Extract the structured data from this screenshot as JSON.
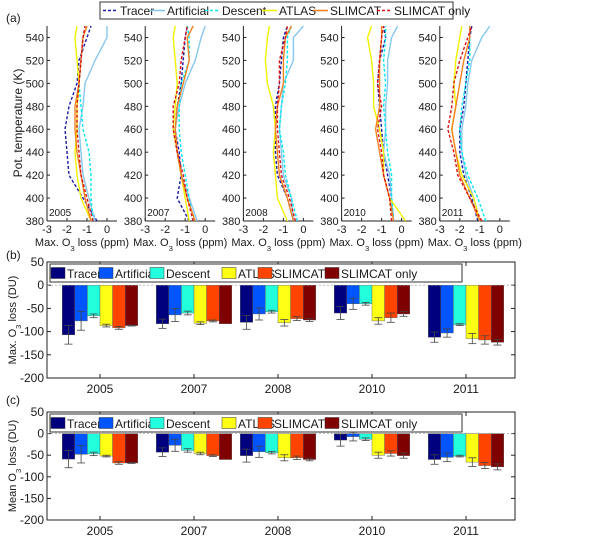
{
  "panel_labels": {
    "a": "(a)",
    "b": "(b)",
    "c": "(c)"
  },
  "series_names": [
    "Tracer",
    "Artificial",
    "Descent",
    "ATLAS",
    "SLIMCAT",
    "SLIMCAT only"
  ],
  "line_colors": [
    "#1a1aa8",
    "#87c8f0",
    "#00e8f0",
    "#f2f200",
    "#f58220",
    "#d41414"
  ],
  "line_dashed": [
    true,
    false,
    true,
    false,
    false,
    true
  ],
  "bar_colors": [
    "#00007f",
    "#0055ff",
    "#22ffdd",
    "#ffff14",
    "#ff4400",
    "#7f0000"
  ],
  "chart_data": [
    {
      "type": "line",
      "panel": "a",
      "ylabel": "Pot. temperature (K)",
      "xlabel": "Max. O3 loss (ppm)",
      "xlim": [
        -3,
        0.5
      ],
      "ylim": [
        380,
        550
      ],
      "xticks": [
        "-3",
        "-2",
        "-1",
        "0"
      ],
      "yticks": [
        "380",
        "400",
        "420",
        "440",
        "460",
        "480",
        "500",
        "520",
        "540"
      ],
      "theta": [
        380,
        400,
        420,
        440,
        460,
        480,
        500,
        520,
        540,
        550
      ],
      "subplots": [
        {
          "year": "2005",
          "series": [
            [
              -0.5,
              -1.2,
              -1.9,
              -2.0,
              -2.1,
              -1.9,
              -1.5,
              -1.4,
              -1.0,
              -0.8
            ],
            [
              -0.6,
              -0.9,
              -1.2,
              -1.3,
              -1.4,
              -1.2,
              -1.1,
              -0.6,
              0.0,
              0.0
            ],
            [
              -0.7,
              -0.8,
              -0.8,
              -0.9,
              -1.2,
              -1.3,
              -1.4,
              -1.3,
              -1.2,
              -1.0
            ],
            [
              -0.8,
              -1.3,
              -1.5,
              -1.6,
              -1.5,
              -1.5,
              -1.4,
              -1.5,
              -1.6,
              -1.5
            ],
            [
              -0.8,
              -1.1,
              -1.3,
              -1.5,
              -1.6,
              -1.6,
              -1.4,
              -1.3,
              -1.2,
              -1.0
            ],
            [
              -0.7,
              -1.0,
              -1.3,
              -1.4,
              -1.5,
              -1.5,
              -1.4,
              -1.3,
              -1.2,
              -1.1
            ]
          ]
        },
        {
          "year": "2007",
          "series": [
            [
              -0.8,
              -1.4,
              -1.2,
              -1.3,
              -1.5,
              -1.4,
              -1.2,
              -1.1,
              -1.0,
              -0.9
            ],
            [
              -0.4,
              -0.8,
              -1.2,
              -1.4,
              -1.5,
              -1.3,
              -1.0,
              -0.5,
              -0.2,
              0.0
            ],
            [
              -0.6,
              -0.8,
              -1.0,
              -1.2,
              -1.3,
              -1.3,
              -1.2,
              -0.8,
              -0.8,
              -0.9
            ],
            [
              -0.8,
              -1.0,
              -1.2,
              -1.4,
              -1.6,
              -1.5,
              -1.4,
              -1.5,
              -1.6,
              -1.5
            ],
            [
              -0.5,
              -0.9,
              -1.2,
              -1.4,
              -1.5,
              -1.4,
              -1.1,
              -0.8,
              -0.9,
              -0.6
            ],
            [
              -0.6,
              -0.9,
              -1.1,
              -1.4,
              -1.6,
              -1.6,
              -1.3,
              -1.2,
              -1.0,
              -0.9
            ]
          ]
        },
        {
          "year": "2008",
          "series": [
            [
              -0.5,
              -0.8,
              -1.3,
              -1.4,
              -1.4,
              -1.4,
              -1.2,
              -1.1,
              -1.0,
              -0.8
            ],
            [
              -0.5,
              -0.6,
              -1.0,
              -1.1,
              -1.2,
              -1.1,
              -1.0,
              -0.5,
              -0.5,
              0.0
            ],
            [
              -0.3,
              -0.6,
              -0.9,
              -1.0,
              -1.2,
              -1.1,
              -0.9,
              -0.8,
              -0.8,
              -0.6
            ],
            [
              -0.8,
              -1.3,
              -1.4,
              -1.5,
              -1.4,
              -1.5,
              -1.8,
              -1.9,
              -1.8,
              -1.7
            ],
            [
              -0.5,
              -0.8,
              -1.2,
              -1.3,
              -1.4,
              -1.3,
              -1.0,
              -1.0,
              -0.9,
              -0.6
            ],
            [
              -0.4,
              -0.7,
              -1.1,
              -1.2,
              -1.3,
              -1.3,
              -1.2,
              -1.2,
              -0.9,
              -0.8
            ]
          ]
        },
        {
          "year": "2010",
          "series": [
            [
              -0.4,
              -0.5,
              -0.7,
              -0.9,
              -1.0,
              -1.1,
              -1.2,
              -1.1,
              -0.8,
              -0.9
            ],
            [
              -0.4,
              -0.5,
              -0.6,
              -0.9,
              -0.8,
              -0.8,
              -0.7,
              -0.7,
              -0.5,
              -0.2
            ],
            [
              -0.4,
              -0.5,
              -0.5,
              -0.7,
              -0.8,
              -0.9,
              -0.8,
              -0.9,
              -0.8,
              -0.8
            ],
            [
              0.2,
              -0.6,
              -0.9,
              -0.9,
              -1.1,
              -1.4,
              -1.4,
              -1.5,
              -1.7,
              -1.5
            ],
            [
              -0.4,
              -0.6,
              -0.9,
              -1.1,
              -1.3,
              -1.1,
              -1.1,
              -1.1,
              -1.0,
              -1.0
            ],
            [
              -0.5,
              -0.6,
              -0.9,
              -1.0,
              -1.2,
              -1.0,
              -1.2,
              -1.1,
              -1.0,
              -0.9
            ]
          ]
        },
        {
          "year": "2011",
          "series": [
            [
              -1.1,
              -1.4,
              -1.8,
              -2.0,
              -2.0,
              -1.8,
              -1.7,
              -1.6,
              -1.5,
              -1.4
            ],
            [
              -1.0,
              -1.3,
              -1.7,
              -1.9,
              -1.9,
              -1.7,
              -1.6,
              -1.4,
              -0.9,
              -0.5
            ],
            [
              -0.7,
              -1.1,
              -1.6,
              -1.9,
              -2.0,
              -1.9,
              -1.7,
              -1.5,
              -1.5,
              -1.5
            ],
            [
              -1.0,
              -1.3,
              -1.9,
              -2.2,
              -2.4,
              -2.2,
              -2.3,
              -2.2,
              -2.0,
              -1.9
            ],
            [
              -1.0,
              -1.5,
              -2.0,
              -2.2,
              -2.4,
              -2.2,
              -2.0,
              -1.8,
              -1.5,
              -1.5
            ],
            [
              -0.9,
              -1.5,
              -2.1,
              -2.3,
              -2.6,
              -2.4,
              -2.3,
              -2.0,
              -1.6,
              -1.4
            ]
          ]
        }
      ]
    },
    {
      "type": "bar",
      "panel": "b",
      "ylabel": "Max. O3 loss (DU)",
      "ylim": [
        -200,
        50
      ],
      "yticks": [
        "50",
        "0",
        "-50",
        "-100",
        "-150",
        "-200"
      ],
      "categories": [
        "2005",
        "2007",
        "2008",
        "2010",
        "2011"
      ],
      "series": [
        {
          "name": "Tracer",
          "values": [
            -107,
            -83,
            -80,
            -60,
            -112
          ],
          "errors": [
            20,
            10,
            15,
            14,
            11
          ]
        },
        {
          "name": "Artificial",
          "values": [
            -77,
            -64,
            -62,
            -40,
            -103
          ],
          "errors": [
            20,
            14,
            13,
            12,
            9
          ]
        },
        {
          "name": "Descent",
          "values": [
            -66,
            -60,
            -57,
            -40,
            -85
          ],
          "errors": [
            4,
            4,
            3,
            3,
            2
          ]
        },
        {
          "name": "ATLAS",
          "values": [
            -87,
            -82,
            -81,
            -77,
            -115
          ],
          "errors": [
            3,
            3,
            7,
            7,
            11
          ]
        },
        {
          "name": "SLIMCAT",
          "values": [
            -92,
            -77,
            -72,
            -70,
            -118
          ],
          "errors": [
            3,
            2,
            4,
            10,
            9
          ]
        },
        {
          "name": "SLIMCAT only",
          "values": [
            -87,
            -83,
            -75,
            -62,
            -123
          ],
          "errors": [
            1,
            0,
            3,
            5,
            6
          ]
        }
      ]
    },
    {
      "type": "bar",
      "panel": "c",
      "ylabel": "Mean O3 loss (DU)",
      "ylim": [
        -200,
        50
      ],
      "yticks": [
        "50",
        "0",
        "-50",
        "-100",
        "-150",
        "-200"
      ],
      "categories": [
        "2005",
        "2007",
        "2008",
        "2010",
        "2011"
      ],
      "series": [
        {
          "name": "Tracer",
          "values": [
            -59,
            -43,
            -51,
            -15,
            -60
          ],
          "errors": [
            20,
            10,
            15,
            14,
            11
          ]
        },
        {
          "name": "Artificial",
          "values": [
            -48,
            -27,
            -42,
            -7,
            -55
          ],
          "errors": [
            20,
            14,
            13,
            10,
            10
          ]
        },
        {
          "name": "Descent",
          "values": [
            -47,
            -39,
            -44,
            -13,
            -52
          ],
          "errors": [
            4,
            4,
            3,
            3,
            2
          ]
        },
        {
          "name": "ATLAS",
          "values": [
            -52,
            -46,
            -56,
            -50,
            -66
          ],
          "errors": [
            2,
            3,
            7,
            7,
            10
          ]
        },
        {
          "name": "SLIMCAT",
          "values": [
            -68,
            -51,
            -56,
            -46,
            -74
          ],
          "errors": [
            3,
            2,
            4,
            6,
            7
          ]
        },
        {
          "name": "SLIMCAT only",
          "values": [
            -68,
            -60,
            -60,
            -51,
            -77
          ],
          "errors": [
            1,
            0,
            3,
            6,
            7
          ]
        }
      ]
    }
  ]
}
